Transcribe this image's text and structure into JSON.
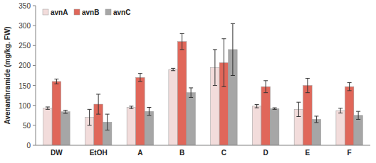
{
  "chart_data": {
    "type": "bar",
    "y_label": "Avenanthramide (mg/kg. FW)",
    "categories": [
      "DW",
      "EtOH",
      "A",
      "B",
      "C",
      "D",
      "E",
      "F"
    ],
    "series": [
      {
        "name": "avnA",
        "color": "#f2dcdb",
        "values": [
          93,
          70,
          95,
          190,
          195,
          98,
          90,
          87
        ],
        "errors": [
          3,
          20,
          3,
          3,
          45,
          4,
          18,
          6
        ]
      },
      {
        "name": "avnB",
        "color": "#e0675a",
        "values": [
          160,
          103,
          170,
          260,
          207,
          147,
          150,
          147
        ],
        "errors": [
          6,
          25,
          10,
          20,
          60,
          15,
          18,
          10
        ]
      },
      {
        "name": "avnC",
        "color": "#a6a6a6",
        "values": [
          84,
          58,
          85,
          132,
          240,
          92,
          65,
          75
        ],
        "errors": [
          4,
          20,
          10,
          12,
          65,
          2,
          8,
          10
        ]
      }
    ],
    "ylim": [
      0,
      350
    ],
    "yticks": [
      0,
      50,
      100,
      150,
      200,
      250,
      300,
      350
    ],
    "grid": false,
    "legend": "top-left"
  }
}
